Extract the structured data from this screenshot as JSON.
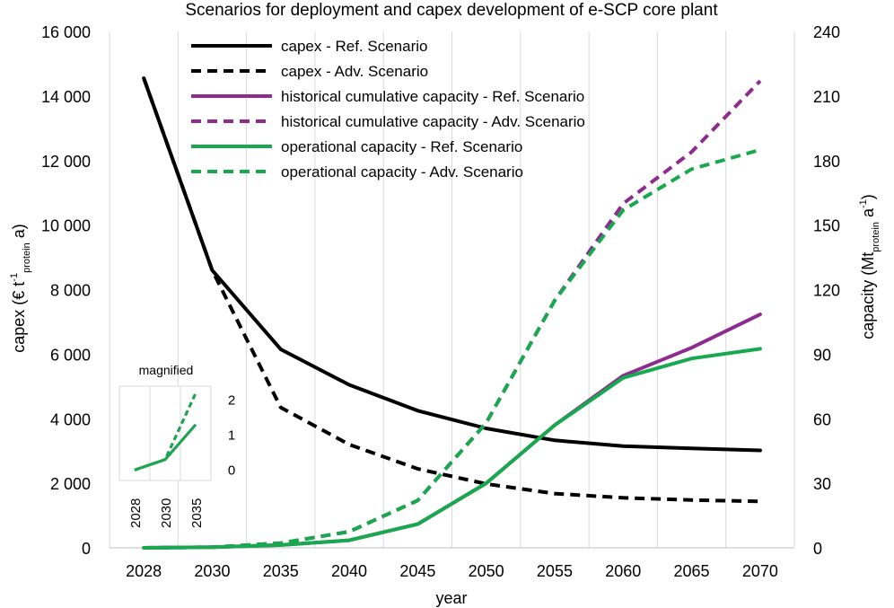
{
  "chart_data": {
    "type": "line",
    "title": "Scenarios for deployment and capex development of e-SCP core plant",
    "xlabel": "year",
    "ylabel_left": {
      "main": "capex (€ t",
      "sup": "-1",
      "sub": "protein",
      "tail": " a)"
    },
    "ylabel_right": {
      "main": "capacity (Mt",
      "sub": "protein",
      "tail": " a",
      "sup": "-1",
      "end": ")"
    },
    "categories": [
      "2028",
      "2030",
      "2035",
      "2040",
      "2045",
      "2050",
      "2055",
      "2060",
      "2065",
      "2070"
    ],
    "y_left": {
      "min": 0,
      "max": 16000,
      "step": 2000,
      "tick_labels": [
        "0",
        "2 000",
        "4 000",
        "6 000",
        "8 000",
        "10 000",
        "12 000",
        "14 000",
        "16 000"
      ]
    },
    "y_right": {
      "min": 0,
      "max": 240,
      "step": 30,
      "tick_labels": [
        "0",
        "30",
        "60",
        "90",
        "120",
        "150",
        "180",
        "210",
        "240"
      ]
    },
    "grid": "vertical",
    "legend_position": "top-left",
    "series": [
      {
        "name": "capex - Ref. Scenario",
        "axis": "left",
        "color": "#000000",
        "dashed": false,
        "values": [
          14550,
          8600,
          6150,
          5050,
          4250,
          3700,
          3330,
          3150,
          3080,
          3020
        ]
      },
      {
        "name": "capex - Adv. Scenario",
        "axis": "left",
        "color": "#000000",
        "dashed": true,
        "values": [
          14550,
          8600,
          4350,
          3200,
          2450,
          1980,
          1680,
          1550,
          1480,
          1440
        ]
      },
      {
        "name": "historical cumulative capacity - Ref. Scenario",
        "axis": "right",
        "color": "#8e2b8e",
        "dashed": false,
        "values": [
          0,
          0.3,
          1.3,
          3.5,
          11,
          30,
          57,
          80,
          93,
          108.5
        ]
      },
      {
        "name": "historical cumulative capacity - Adv. Scenario",
        "axis": "right",
        "color": "#8e2b8e",
        "dashed": true,
        "values": [
          0,
          0.3,
          2.2,
          7.5,
          22,
          58,
          115,
          160,
          184,
          217
        ]
      },
      {
        "name": "operational capacity - Ref. Scenario",
        "axis": "right",
        "color": "#18a84e",
        "dashed": false,
        "values": [
          0,
          0.3,
          1.3,
          3.5,
          11,
          30,
          57,
          79,
          88,
          92.5
        ]
      },
      {
        "name": "operational capacity - Adv. Scenario",
        "axis": "right",
        "color": "#18a84e",
        "dashed": true,
        "values": [
          0,
          0.3,
          2.2,
          7.5,
          22,
          58,
          115,
          157,
          176,
          185
        ]
      }
    ],
    "inset": {
      "title": "magnified",
      "categories": [
        "2028",
        "2030",
        "2035"
      ],
      "ymin": -0.3,
      "ymax": 2.4,
      "tick_labels": [
        "0",
        "1",
        "2"
      ],
      "tick_values": [
        0,
        1,
        2
      ],
      "series": [
        {
          "name": "historical cumulative capacity - Ref. Scenario",
          "color": "#8e2b8e",
          "dashed": false,
          "values": [
            0,
            0.3,
            1.3
          ]
        },
        {
          "name": "historical cumulative capacity - Adv. Scenario",
          "color": "#8e2b8e",
          "dashed": true,
          "values": [
            0,
            0.3,
            2.2
          ]
        },
        {
          "name": "operational capacity - Ref. Scenario",
          "color": "#18a84e",
          "dashed": false,
          "values": [
            0,
            0.3,
            1.3
          ]
        },
        {
          "name": "operational capacity - Adv. Scenario",
          "color": "#18a84e",
          "dashed": true,
          "values": [
            0,
            0.3,
            2.2
          ]
        }
      ]
    }
  }
}
